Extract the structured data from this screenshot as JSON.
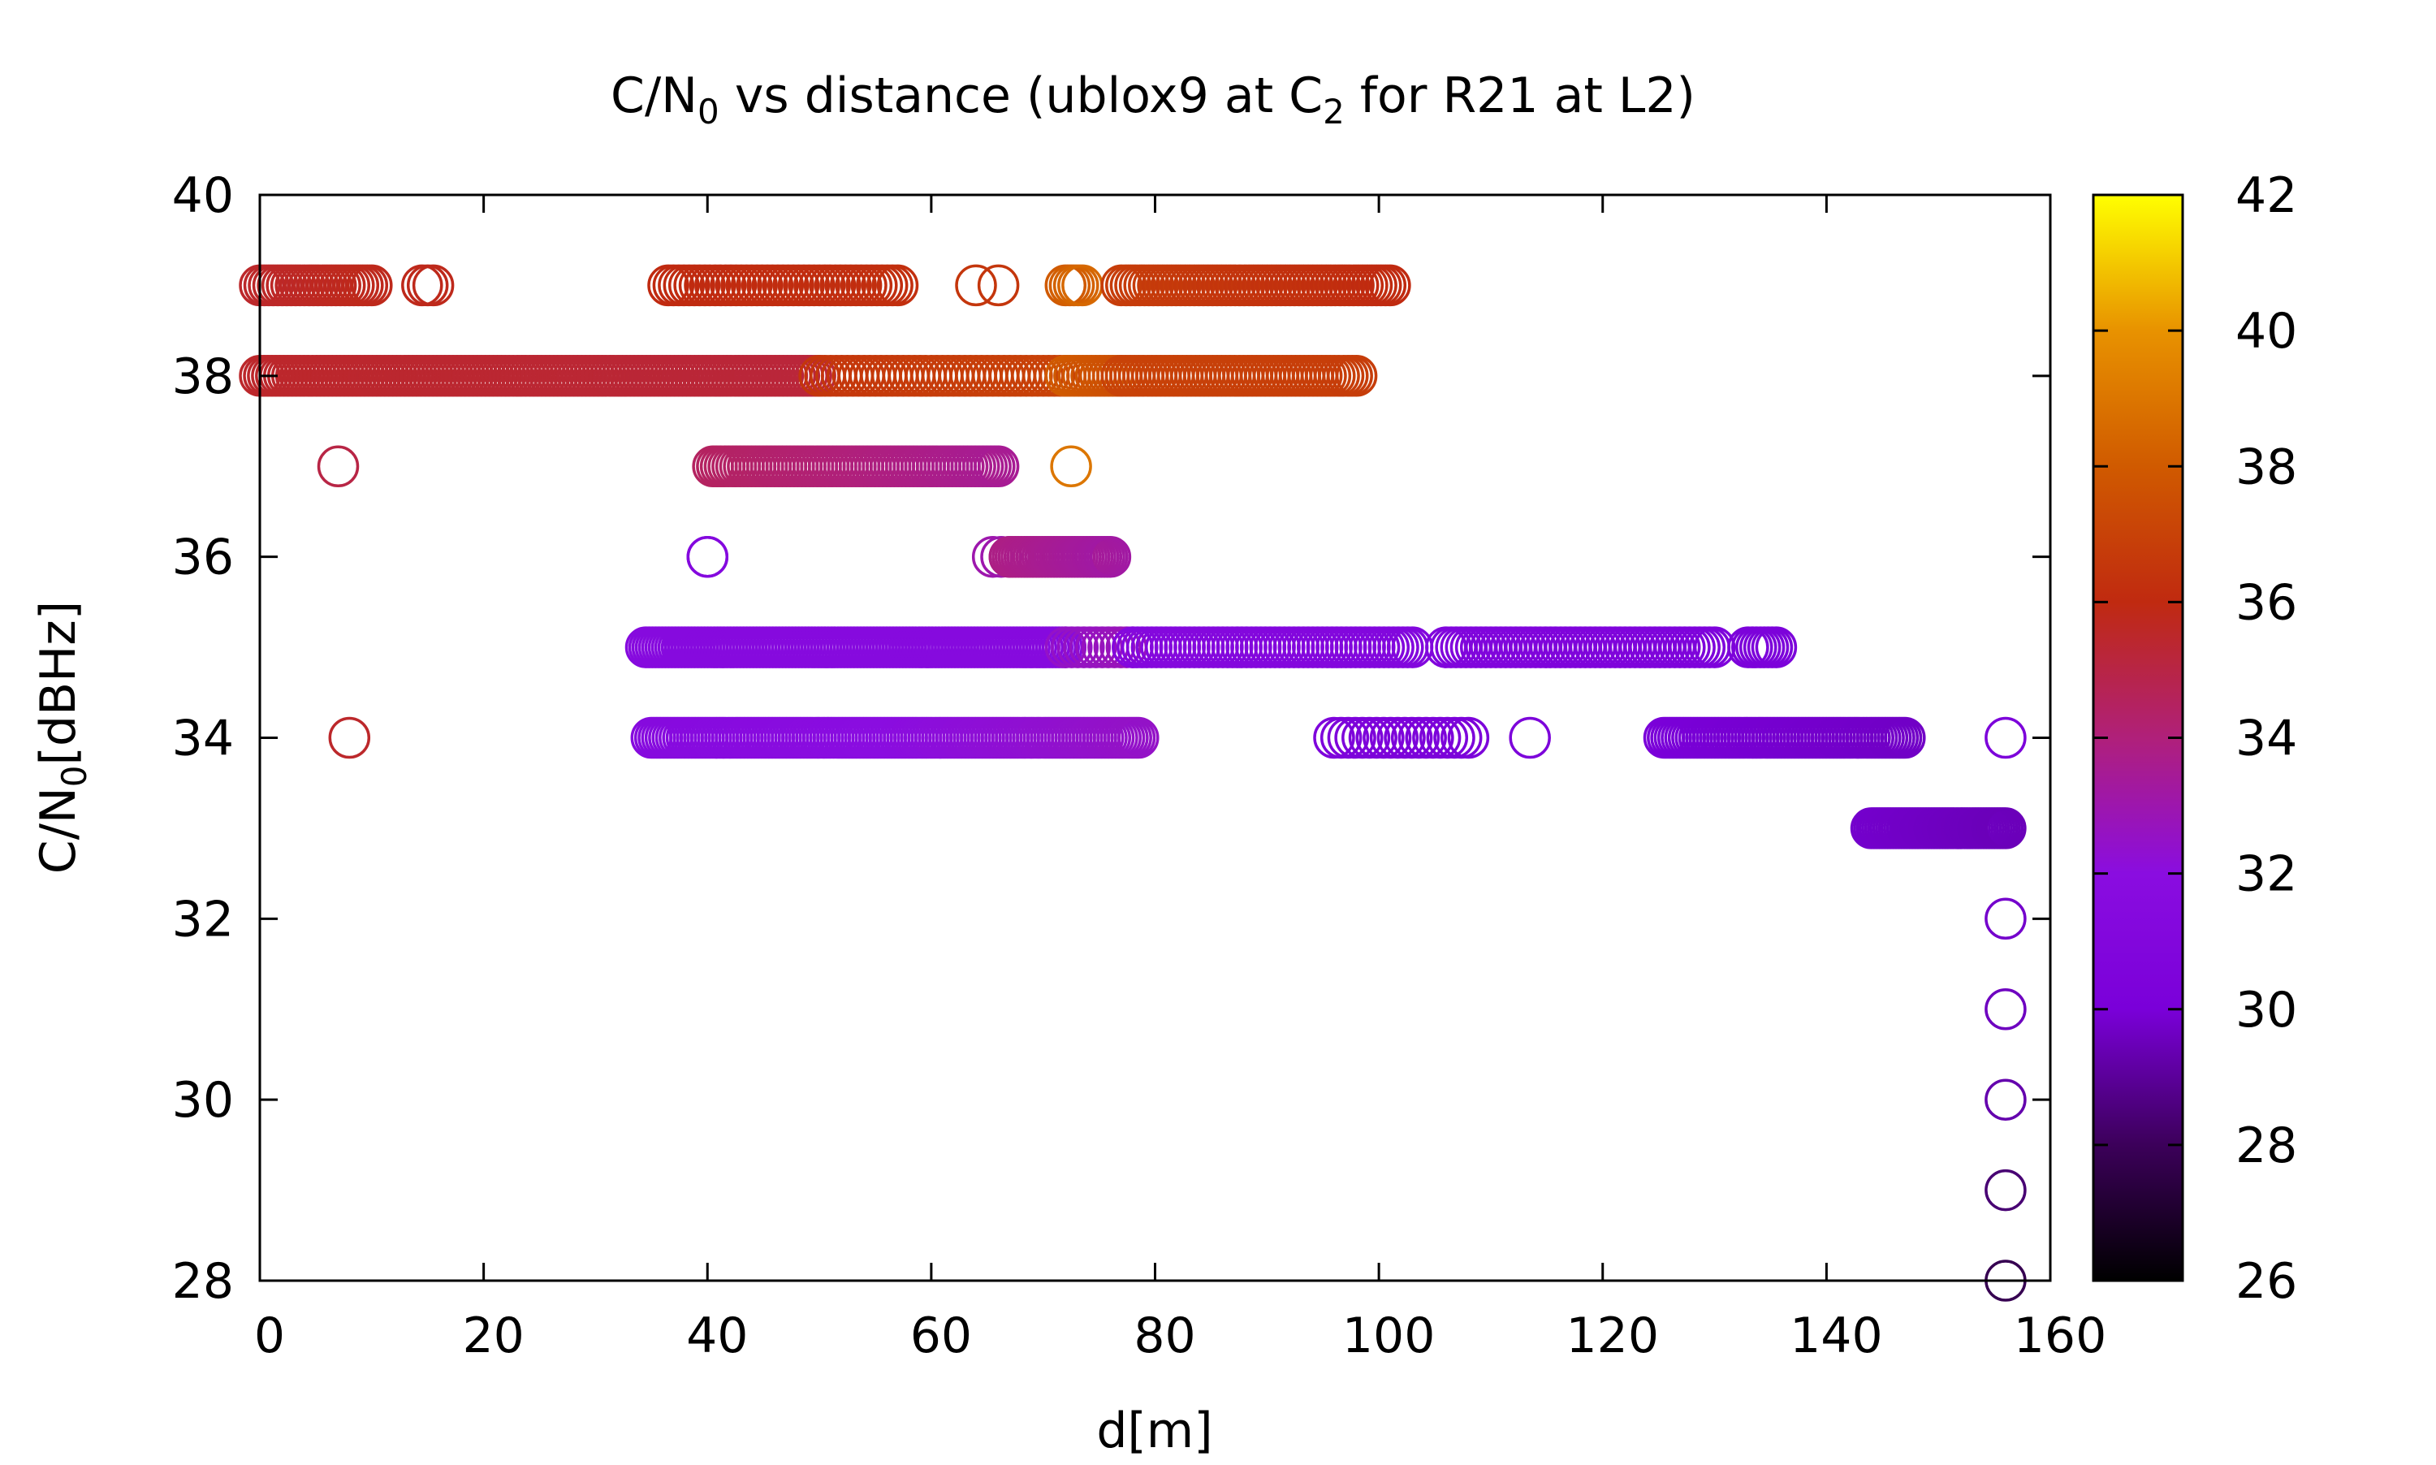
{
  "chart_data": {
    "type": "scatter",
    "title": {
      "main": "C/N",
      "sub0": "0",
      "middle": " vs distance (ublox9 at C",
      "sub2": "2",
      "tail": " for R21 at L2)"
    },
    "xlabel": "d[m]",
    "ylabel": {
      "main": "C/N",
      "sub": "0",
      "tail": "[dBHz]"
    },
    "xlim": [
      0,
      160
    ],
    "ylim": [
      28,
      40
    ],
    "x_ticks": [
      0,
      20,
      40,
      60,
      80,
      100,
      120,
      140,
      160
    ],
    "y_ticks": [
      28,
      30,
      32,
      34,
      36,
      38,
      40
    ],
    "colorbar": {
      "range": [
        26,
        42
      ],
      "ticks": [
        26,
        28,
        30,
        32,
        34,
        36,
        38,
        40,
        42
      ],
      "palette": [
        "#000000",
        "#3c005a",
        "#7a00d9",
        "#8a0de0",
        "#b0207a",
        "#c02a10",
        "#d05a00",
        "#e89200",
        "#ffff00"
      ]
    },
    "marker": "open-circle",
    "grid": false,
    "legend": "none",
    "segments": [
      {
        "y": 39,
        "x0": 0,
        "x1": 10,
        "n": 26,
        "c0": 35.5,
        "c1": 35.8
      },
      {
        "y": 39,
        "x0": 14.5,
        "x1": 15.5,
        "n": 3,
        "c0": 35.8,
        "c1": 35.8
      },
      {
        "y": 39,
        "x0": 36.5,
        "x1": 57,
        "n": 45,
        "c0": 36,
        "c1": 36.2
      },
      {
        "y": 39,
        "x0": 64,
        "x1": 66,
        "n": 2,
        "c0": 36.5,
        "c1": 36.5
      },
      {
        "y": 39,
        "x0": 72,
        "x1": 73.5,
        "n": 5,
        "c0": 38,
        "c1": 38.5
      },
      {
        "y": 39,
        "x0": 77,
        "x1": 101,
        "n": 60,
        "c0": 36.8,
        "c1": 36
      },
      {
        "y": 38,
        "x0": 0,
        "x1": 50,
        "n": 140,
        "c0": 35.5,
        "c1": 35.2
      },
      {
        "y": 38,
        "x0": 50,
        "x1": 72,
        "n": 45,
        "c0": 36.5,
        "c1": 37
      },
      {
        "y": 38,
        "x0": 72,
        "x1": 77,
        "n": 14,
        "c0": 38,
        "c1": 37.5
      },
      {
        "y": 38,
        "x0": 77,
        "x1": 98,
        "n": 55,
        "c0": 37,
        "c1": 36.8
      },
      {
        "y": 37,
        "x0": 7,
        "x1": 7,
        "n": 1,
        "c0": 35,
        "c1": 35
      },
      {
        "y": 37,
        "x0": 40.5,
        "x1": 66,
        "n": 75,
        "c0": 34.5,
        "c1": 33.5
      },
      {
        "y": 37,
        "x0": 72.5,
        "x1": 72.5,
        "n": 1,
        "c0": 39,
        "c1": 39
      },
      {
        "y": 36,
        "x0": 40,
        "x1": 40,
        "n": 2,
        "c0": 31.3,
        "c1": 31.3
      },
      {
        "y": 36,
        "x0": 65.5,
        "x1": 67,
        "n": 3,
        "c0": 33,
        "c1": 33
      },
      {
        "y": 36,
        "x0": 67,
        "x1": 76,
        "n": 35,
        "c0": 33.8,
        "c1": 33.2
      },
      {
        "y": 35,
        "x0": 34.5,
        "x1": 72,
        "n": 130,
        "c0": 31.5,
        "c1": 31.5
      },
      {
        "y": 35,
        "x0": 72,
        "x1": 78,
        "n": 12,
        "c0": 32.5,
        "c1": 32.8
      },
      {
        "y": 35,
        "x0": 78,
        "x1": 103,
        "n": 60,
        "c0": 31.3,
        "c1": 31
      },
      {
        "y": 35,
        "x0": 106,
        "x1": 130,
        "n": 55,
        "c0": 30.8,
        "c1": 30.5
      },
      {
        "y": 35,
        "x0": 133,
        "x1": 135.5,
        "n": 8,
        "c0": 30.3,
        "c1": 30.3
      },
      {
        "y": 34,
        "x0": 8,
        "x1": 8,
        "n": 1,
        "c0": 35.5,
        "c1": 35.5
      },
      {
        "y": 34,
        "x0": 35,
        "x1": 78.5,
        "n": 140,
        "c0": 31.5,
        "c1": 32.5
      },
      {
        "y": 34,
        "x0": 96,
        "x1": 108,
        "n": 20,
        "c0": 30.5,
        "c1": 30.2
      },
      {
        "y": 34,
        "x0": 113.5,
        "x1": 113.5,
        "n": 1,
        "c0": 30.3,
        "c1": 30.3
      },
      {
        "y": 34,
        "x0": 125.5,
        "x1": 147,
        "n": 70,
        "c0": 30,
        "c1": 29.7
      },
      {
        "y": 34,
        "x0": 156,
        "x1": 156,
        "n": 1,
        "c0": 30.2,
        "c1": 30.2
      },
      {
        "y": 33,
        "x0": 144,
        "x1": 156,
        "n": 50,
        "c0": 29.8,
        "c1": 29.5
      },
      {
        "y": 32,
        "x0": 156,
        "x1": 156,
        "n": 1,
        "c0": 29.8,
        "c1": 29.8
      },
      {
        "y": 31,
        "x0": 156,
        "x1": 156,
        "n": 1,
        "c0": 29.6,
        "c1": 29.6
      },
      {
        "y": 30,
        "x0": 156,
        "x1": 156,
        "n": 1,
        "c0": 29.3,
        "c1": 29.3
      },
      {
        "y": 29,
        "x0": 156,
        "x1": 156,
        "n": 1,
        "c0": 28.4,
        "c1": 28.4
      },
      {
        "y": 28,
        "x0": 156,
        "x1": 156,
        "n": 1,
        "c0": 27.8,
        "c1": 27.8
      }
    ]
  }
}
